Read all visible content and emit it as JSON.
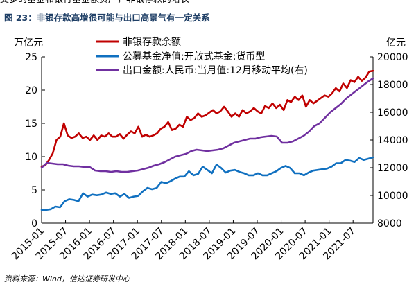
{
  "header": {
    "top_text": "支多的基金和银行基金额资产，非银存款的增长",
    "figure_title": "图 23：非银存款高增很可能与出口高景气有一定关系"
  },
  "source": "资料来源：Wind，信达证券研发中心",
  "chart_data": {
    "type": "line",
    "title": "",
    "left_axis": {
      "unit": "万亿元",
      "min": 0,
      "max": 25,
      "ticks": [
        "0",
        "5",
        "10",
        "15",
        "20",
        "25"
      ]
    },
    "right_axis": {
      "unit": "亿元",
      "min": 8000,
      "max": 20000,
      "ticks": [
        "8000",
        "10000",
        "12000",
        "14000",
        "16000",
        "18000",
        "20000"
      ]
    },
    "x_tick_labels": [
      "2015-01",
      "2015-07",
      "2016-01",
      "2016-07",
      "2017-01",
      "2017-07",
      "2018-01",
      "2018-07",
      "2019-01",
      "2019-07",
      "2020-01",
      "2020-07",
      "2021-01",
      "2021-07"
    ],
    "x_range_months": {
      "start": "2015-01",
      "end": "2021-12"
    },
    "series": [
      {
        "name": "非银存款余额",
        "axis": "left",
        "color": "#c00000",
        "values": [
          8.5,
          8.7,
          9.5,
          10.5,
          12.5,
          13.0,
          15.0,
          13.2,
          12.8,
          13.0,
          13.5,
          12.8,
          13.0,
          12.5,
          13.2,
          12.5,
          13.2,
          13.0,
          13.5,
          13.0,
          13.0,
          13.4,
          12.7,
          13.3,
          13.8,
          13.5,
          14.5,
          13.0,
          13.3,
          13.0,
          13.2,
          13.5,
          14.2,
          14.5,
          15.2,
          14.0,
          14.2,
          14.8,
          14.5,
          16.0,
          15.5,
          15.8,
          16.5,
          16.0,
          16.2,
          16.6,
          17.0,
          16.5,
          16.8,
          17.5,
          16.8,
          16.0,
          16.5,
          16.0,
          17.0,
          16.5,
          16.8,
          17.3,
          16.8,
          16.5,
          17.6,
          17.3,
          18.0,
          17.3,
          17.8,
          17.0,
          18.5,
          18.2,
          19.0,
          18.5,
          19.2,
          17.5,
          18.5,
          18.0,
          18.4,
          18.8,
          19.2,
          19.0,
          19.5,
          20.3,
          19.8,
          21.0,
          20.3,
          21.5,
          21.2,
          22.0,
          21.4,
          21.9,
          22.8,
          22.9
        ]
      },
      {
        "name": "公募基金净值:开放式基金:货币型",
        "axis": "left",
        "color": "#1070c0",
        "values": [
          2.0,
          2.0,
          2.1,
          2.5,
          2.4,
          3.3,
          3.6,
          3.5,
          3.3,
          4.5,
          4.0,
          4.3,
          4.2,
          4.3,
          4.6,
          4.4,
          4.5,
          4.0,
          4.4,
          3.8,
          4.0,
          4.1,
          4.8,
          5.3,
          5.1,
          5.3,
          6.2,
          6.0,
          6.3,
          6.7,
          7.0,
          7.0,
          7.8,
          7.2,
          7.4,
          8.5,
          8.0,
          7.5,
          8.8,
          8.3,
          7.6,
          7.9,
          8.0,
          7.7,
          7.5,
          7.2,
          7.2,
          7.5,
          7.2,
          7.2,
          7.5,
          7.8,
          8.3,
          8.6,
          8.3,
          7.5,
          7.5,
          7.2,
          7.6,
          7.9,
          8.0,
          8.1,
          8.2,
          8.5,
          9.0,
          9.0,
          9.5,
          9.4,
          9.2,
          9.8,
          9.5,
          9.7,
          9.9
        ]
      },
      {
        "name": "出口金额:人民币:当月值:12月移动平均(右)",
        "axis": "right",
        "color": "#7030a0",
        "values": [
          12000,
          12350,
          12300,
          12250,
          12250,
          12150,
          12100,
          12100,
          12050,
          12050,
          11800,
          11750,
          11750,
          11700,
          11750,
          11700,
          11700,
          11750,
          11800,
          11900,
          12000,
          12150,
          12250,
          12400,
          12600,
          12800,
          12900,
          13000,
          13200,
          13300,
          13250,
          13200,
          13250,
          13300,
          13400,
          13600,
          13800,
          13900,
          14000,
          14100,
          14100,
          14200,
          14250,
          14300,
          14250,
          13800,
          13800,
          13900,
          14100,
          14300,
          14600,
          15000,
          15200,
          15600,
          16000,
          16300,
          16600,
          17000,
          17300,
          17600,
          17900,
          18200,
          18450
        ]
      }
    ]
  }
}
